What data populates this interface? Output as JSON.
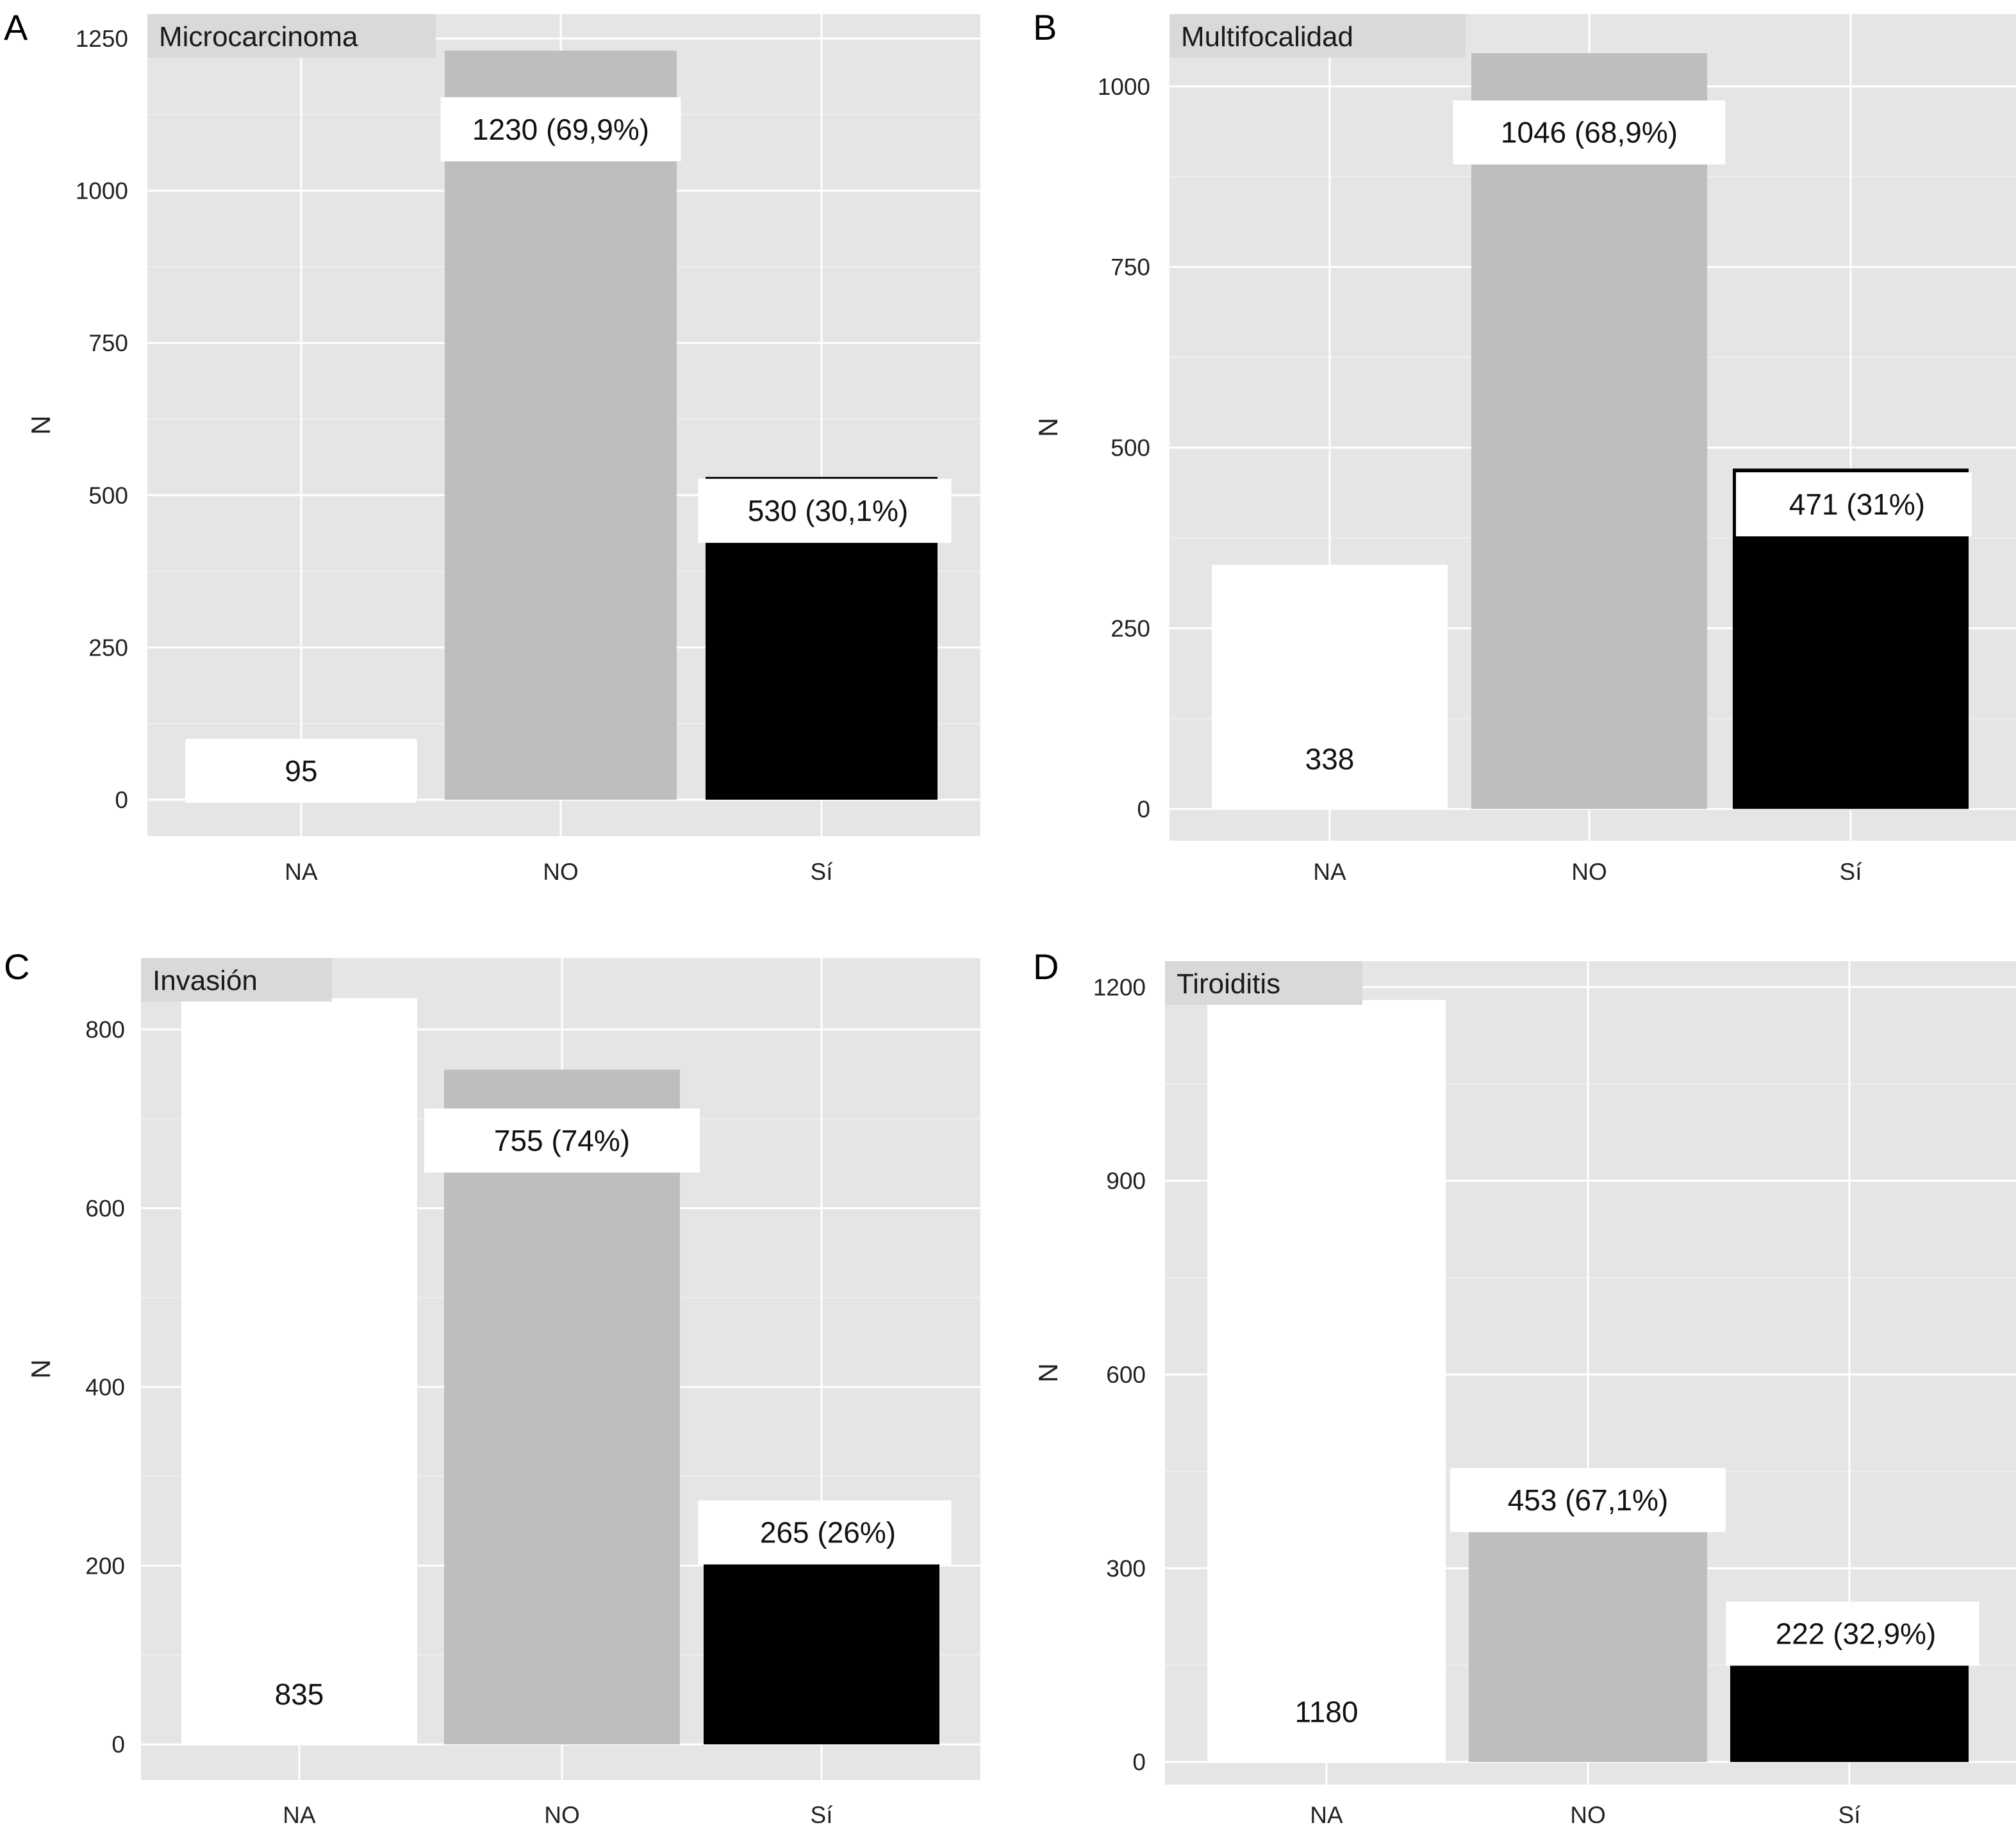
{
  "colors": {
    "panel_bg": "#e5e5e5",
    "grid_major": "#ffffff",
    "grid_minor": "#efefef",
    "strip_bg": "#d9d9d9",
    "bar_NA": "#ffffff",
    "bar_NO": "#bebebe",
    "bar_SI": "#000000",
    "label_box": "#ffffff"
  },
  "chart_data": [
    {
      "type": "bar",
      "panel": "A",
      "title": "Microcarcinoma",
      "ylabel": "N",
      "categories": [
        "NA",
        "NO",
        "Sí"
      ],
      "values": [
        95,
        1230,
        530
      ],
      "labels": [
        "95",
        "1230 (69,9%)",
        "530 (30,1%)"
      ],
      "ylim": [
        -60,
        1290
      ],
      "yticks": [
        0,
        250,
        500,
        750,
        1000,
        1250
      ],
      "grid": true
    },
    {
      "type": "bar",
      "panel": "B",
      "title": "Multifocalidad",
      "ylabel": "N",
      "categories": [
        "NA",
        "NO",
        "Sí"
      ],
      "values": [
        338,
        1046,
        471
      ],
      "labels": [
        "338",
        "1046 (68,9%)",
        "471 (31%)"
      ],
      "ylim": [
        -44,
        1100
      ],
      "yticks": [
        0,
        250,
        500,
        750,
        1000
      ],
      "grid": true
    },
    {
      "type": "bar",
      "panel": "C",
      "title": "Invasión",
      "ylabel": "N",
      "categories": [
        "NA",
        "NO",
        "Sí"
      ],
      "values": [
        835,
        755,
        265
      ],
      "labels": [
        "835",
        "755 (74%)",
        "265 (26%)"
      ],
      "ylim": [
        -40,
        880
      ],
      "yticks": [
        0,
        200,
        400,
        600,
        800
      ],
      "grid": true
    },
    {
      "type": "bar",
      "panel": "D",
      "title": "Tiroiditis",
      "ylabel": "N",
      "categories": [
        "NA",
        "NO",
        "Sí"
      ],
      "values": [
        1180,
        453,
        222
      ],
      "labels": [
        "1180",
        "453 (67,1%)",
        "222 (32,9%)"
      ],
      "ylim": [
        -35,
        1240
      ],
      "yticks": [
        0,
        300,
        600,
        900,
        1200
      ],
      "grid": true
    }
  ]
}
